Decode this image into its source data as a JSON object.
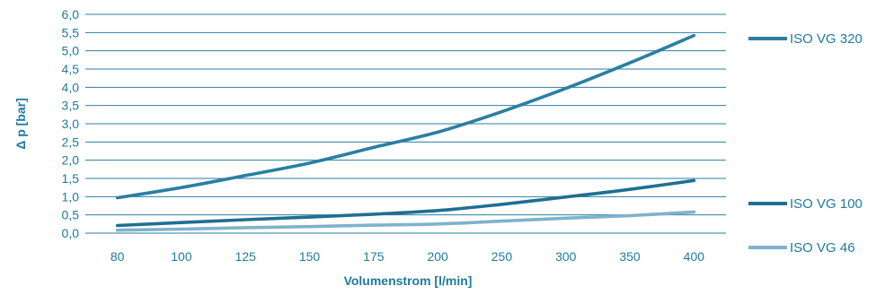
{
  "chart_data": {
    "type": "line",
    "xlabel": "Volumenstrom [l/min]",
    "ylabel": "Δ p [bar]",
    "x": [
      80,
      100,
      125,
      150,
      175,
      200,
      250,
      300,
      350,
      400
    ],
    "x_tick_labels": [
      "80",
      "100",
      "125",
      "150",
      "175",
      "200",
      "250",
      "300",
      "350",
      "400"
    ],
    "ylim": [
      0,
      6
    ],
    "y_tick_labels": [
      "0,0",
      "0,5",
      "1,0",
      "1,5",
      "2,0",
      "2,5",
      "3,0",
      "3,5",
      "4,0",
      "4,5",
      "5,0",
      "5,5",
      "6,0"
    ],
    "grid": true,
    "legend_position": "right",
    "series": [
      {
        "name": "ISO VG 320",
        "color": "#2a7fa3",
        "values": [
          0.97,
          1.25,
          1.58,
          1.92,
          2.35,
          2.77,
          3.33,
          3.97,
          4.67,
          5.42
        ]
      },
      {
        "name": "ISO VG 100",
        "color": "#1f6f92",
        "values": [
          0.21,
          0.29,
          0.37,
          0.44,
          0.52,
          0.62,
          0.79,
          0.99,
          1.2,
          1.44
        ]
      },
      {
        "name": "ISO VG 46",
        "color": "#7fb2cc",
        "values": [
          0.08,
          0.11,
          0.15,
          0.18,
          0.22,
          0.25,
          0.33,
          0.41,
          0.48,
          0.58
        ]
      }
    ]
  }
}
